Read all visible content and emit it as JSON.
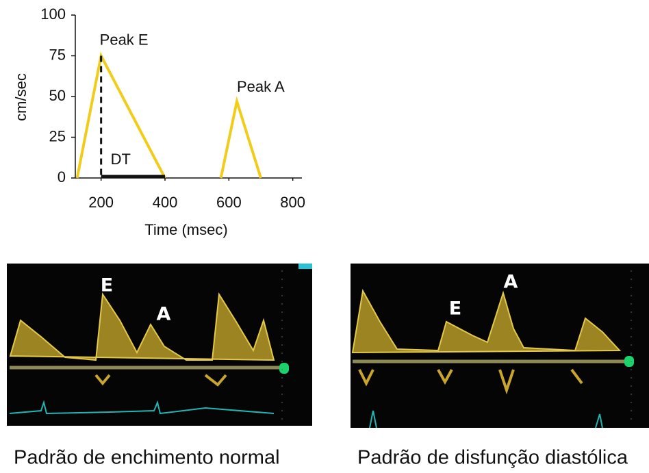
{
  "chart_data": {
    "type": "line",
    "x_label": "Time (msec)",
    "y_label": "cm/sec",
    "series": [
      {
        "color": "#f2cc1a",
        "x": [
          125,
          200,
          400
        ],
        "values": [
          0,
          75,
          0
        ]
      },
      {
        "color": "#f2cc1a",
        "x": [
          575,
          625,
          700
        ],
        "values": [
          0,
          47,
          0
        ]
      }
    ],
    "annotations": [
      "Peak E",
      "Peak A",
      "DT"
    ],
    "xlim": [
      100,
      850
    ],
    "xticks": [
      200,
      400,
      600,
      800
    ],
    "ylim": [
      0,
      100
    ],
    "yticks": [
      0,
      25,
      50,
      75,
      100
    ]
  },
  "panels": [
    {
      "caption": "Padrão de enchimento normal",
      "labels": [
        "E",
        "A"
      ]
    },
    {
      "caption": "Padrão de disfunção diastólica",
      "labels": [
        "E",
        "A"
      ]
    }
  ]
}
